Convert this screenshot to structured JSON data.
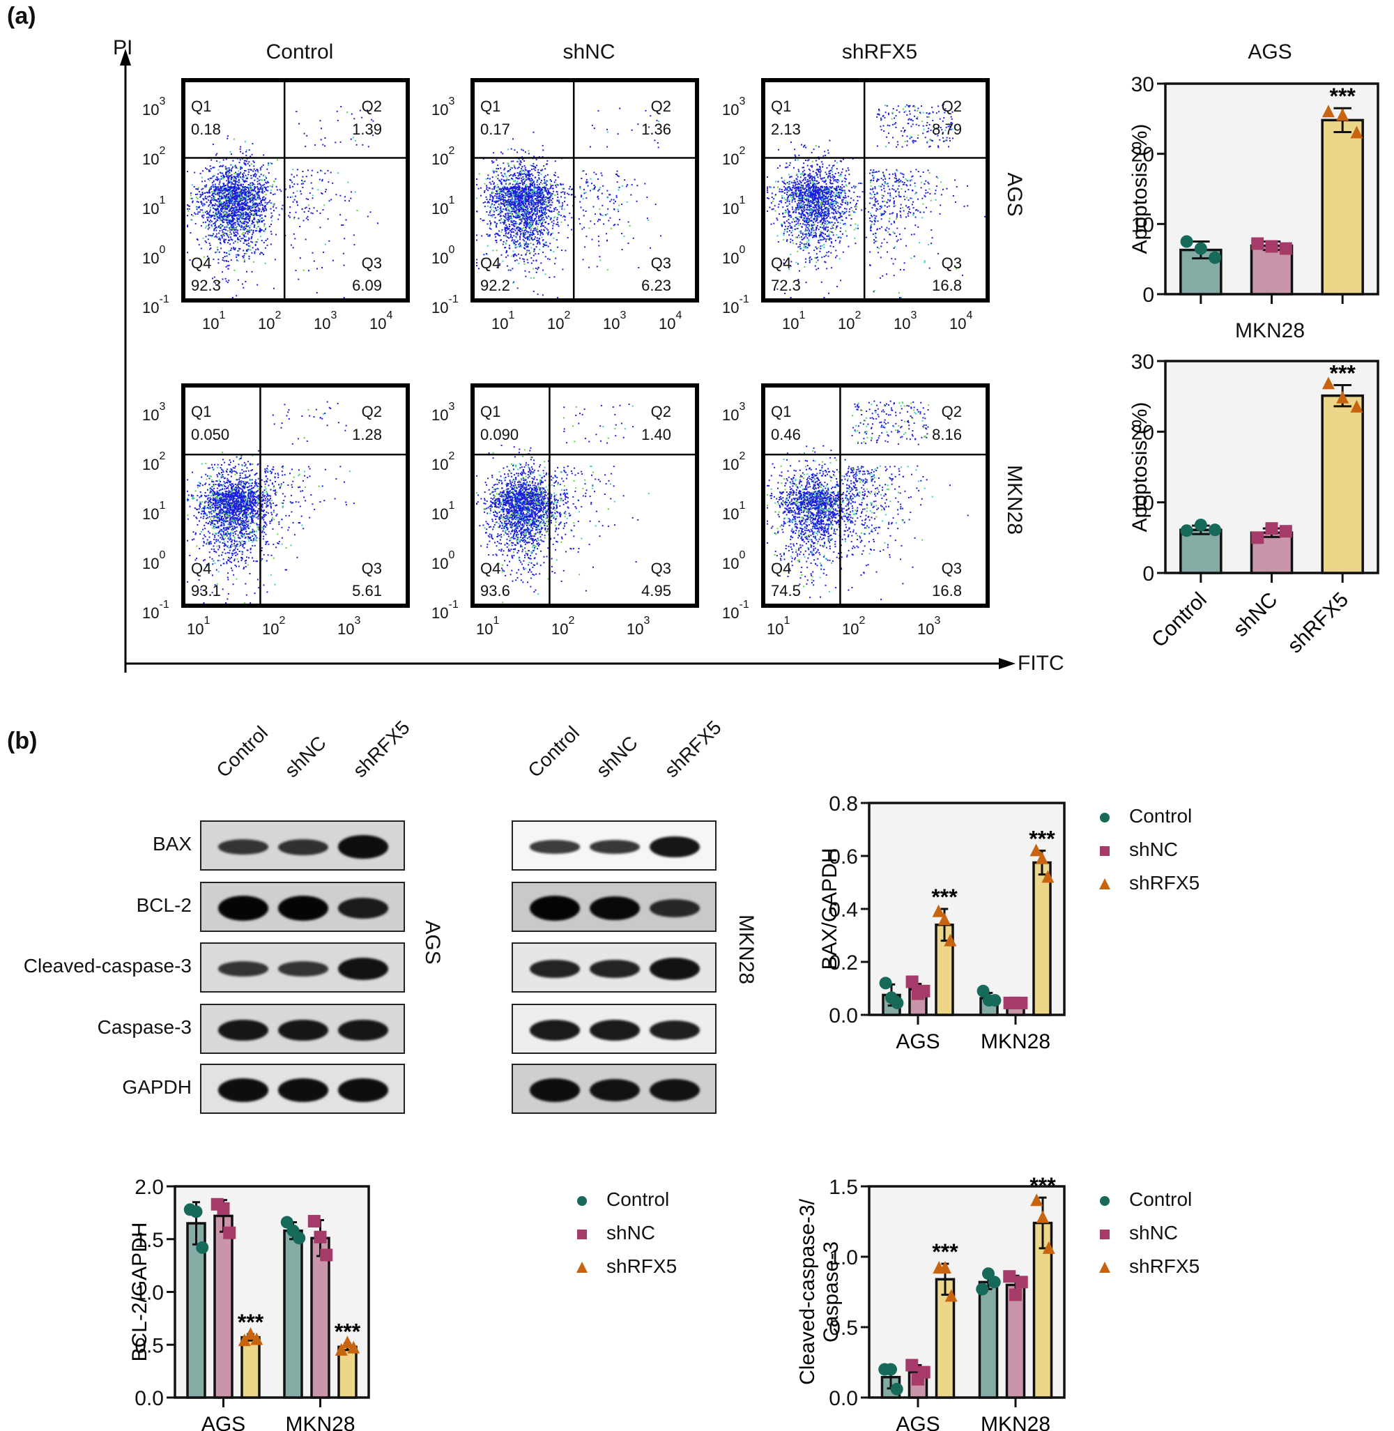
{
  "panel_labels": {
    "a": "(a)",
    "b": "(b)"
  },
  "flow": {
    "y_axis_label": "PI",
    "x_axis_label": "FITC",
    "column_titles": [
      "Control",
      "shNC",
      "shRFX5"
    ],
    "row_labels": [
      "AGS",
      "MKN28"
    ],
    "y_ticks": [
      {
        "base": "10",
        "exp": "3"
      },
      {
        "base": "10",
        "exp": "2"
      },
      {
        "base": "10",
        "exp": "1"
      },
      {
        "base": "10",
        "exp": "0"
      },
      {
        "base": "10",
        "exp": "-1"
      }
    ],
    "x_ticks_row1": [
      {
        "base": "10",
        "exp": "1"
      },
      {
        "base": "10",
        "exp": "2"
      },
      {
        "base": "10",
        "exp": "3"
      },
      {
        "base": "10",
        "exp": "4"
      }
    ],
    "x_ticks_row2": [
      {
        "base": "10",
        "exp": "1"
      },
      {
        "base": "10",
        "exp": "2"
      },
      {
        "base": "10",
        "exp": "3"
      }
    ],
    "quadrant_names": [
      "Q1",
      "Q2",
      "Q3",
      "Q4"
    ],
    "panels": [
      {
        "row": "AGS",
        "group": "Control",
        "Q1": "0.18",
        "Q2": "1.39",
        "Q3": "6.09",
        "Q4": "92.3"
      },
      {
        "row": "AGS",
        "group": "shNC",
        "Q1": "0.17",
        "Q2": "1.36",
        "Q3": "6.23",
        "Q4": "92.2"
      },
      {
        "row": "AGS",
        "group": "shRFX5",
        "Q1": "2.13",
        "Q2": "8.79",
        "Q3": "16.8",
        "Q4": "72.3"
      },
      {
        "row": "MKN28",
        "group": "Control",
        "Q1": "0.050",
        "Q2": "1.28",
        "Q3": "5.61",
        "Q4": "93.1"
      },
      {
        "row": "MKN28",
        "group": "shNC",
        "Q1": "0.090",
        "Q2": "1.40",
        "Q3": "4.95",
        "Q4": "93.6"
      },
      {
        "row": "MKN28",
        "group": "shRFX5",
        "Q1": "0.46",
        "Q2": "8.16",
        "Q3": "16.8",
        "Q4": "74.5"
      }
    ]
  },
  "western": {
    "lanes": [
      "Control",
      "shNC",
      "shRFX5"
    ],
    "proteins": [
      "BAX",
      "BCL-2",
      "Cleaved-caspase-3",
      "Caspase-3",
      "GAPDH"
    ],
    "cell_lines": [
      "AGS",
      "MKN28"
    ],
    "band_intensity": {
      "AGS": [
        [
          0.45,
          0.5,
          0.9
        ],
        [
          1.0,
          1.0,
          0.75
        ],
        [
          0.45,
          0.45,
          0.85
        ],
        [
          0.8,
          0.8,
          0.8
        ],
        [
          0.9,
          0.9,
          0.9
        ]
      ],
      "MKN28": [
        [
          0.35,
          0.4,
          0.8
        ],
        [
          1.0,
          0.95,
          0.6
        ],
        [
          0.65,
          0.65,
          0.85
        ],
        [
          0.75,
          0.75,
          0.7
        ],
        [
          0.9,
          0.85,
          0.85
        ]
      ]
    }
  },
  "colors": {
    "Control": {
      "bar": "#84aca5",
      "marker": "#17695a"
    },
    "shNC": {
      "bar": "#c995aa",
      "marker": "#a63a68"
    },
    "shRFX5": {
      "bar": "#ecd68a",
      "marker": "#c8640f"
    },
    "plot_bg": "#f3f3f3"
  },
  "legend": [
    "Control",
    "shNC",
    "shRFX5"
  ],
  "significance": "***",
  "chart_data": [
    {
      "id": "apoptosis-ags",
      "type": "bar",
      "title": "AGS",
      "ylabel": "Apoptosis (%)",
      "xlabel": "",
      "ylim": [
        0,
        30
      ],
      "yticks": [
        0,
        10,
        20,
        30
      ],
      "categories": [
        "Control",
        "shNC",
        "shRFX5"
      ],
      "values": [
        6.3,
        6.9,
        24.8
      ],
      "errors": [
        1.2,
        0.6,
        1.7
      ],
      "points": [
        [
          7.5,
          6.5,
          5.2
        ],
        [
          7.2,
          6.8,
          6.5
        ],
        [
          26.0,
          25.5,
          23.0
        ]
      ],
      "significance": [
        "",
        "",
        "***"
      ]
    },
    {
      "id": "apoptosis-mkn28",
      "type": "bar",
      "title": "MKN28",
      "ylabel": "Apoptosis (%)",
      "xlabel": "",
      "ylim": [
        0,
        30
      ],
      "yticks": [
        0,
        10,
        20,
        30
      ],
      "categories": [
        "Control",
        "shNC",
        "shRFX5"
      ],
      "values": [
        6.1,
        5.7,
        25.1
      ],
      "errors": [
        0.6,
        0.6,
        1.5
      ],
      "points": [
        [
          6.0,
          6.8,
          6.1
        ],
        [
          5.0,
          6.3,
          5.9
        ],
        [
          26.8,
          24.8,
          23.5
        ]
      ],
      "significance": [
        "",
        "",
        "***"
      ]
    },
    {
      "id": "bax-gapdh",
      "type": "bar",
      "title": "",
      "ylabel": "BAX/GAPDH",
      "xlabel": "",
      "ylim": [
        0,
        0.8
      ],
      "yticks": [
        0.0,
        0.2,
        0.4,
        0.6,
        0.8
      ],
      "ytick_labels": [
        "0.0",
        "0.2",
        "0.4",
        "0.6",
        "0.8"
      ],
      "categories": [
        "AGS",
        "MKN28"
      ],
      "series": [
        {
          "name": "Control",
          "values": [
            0.075,
            0.063
          ],
          "errors": [
            0.04,
            0.02
          ],
          "points": [
            [
              0.12,
              0.065,
              0.045
            ],
            [
              0.09,
              0.055,
              0.055
            ]
          ]
        },
        {
          "name": "shNC",
          "values": [
            0.097,
            0.045
          ],
          "errors": [
            0.02,
            0.005
          ],
          "points": [
            [
              0.125,
              0.08,
              0.09
            ],
            [
              0.045,
              0.045,
              0.045
            ]
          ]
        },
        {
          "name": "shRFX5",
          "values": [
            0.34,
            0.575
          ],
          "errors": [
            0.06,
            0.045
          ],
          "points": [
            [
              0.39,
              0.36,
              0.28
            ],
            [
              0.62,
              0.59,
              0.52
            ]
          ]
        }
      ],
      "significance": [
        [
          "",
          "",
          "***"
        ],
        [
          "",
          "",
          "***"
        ]
      ],
      "legend_position": "right"
    },
    {
      "id": "bcl2-gapdh",
      "type": "bar",
      "title": "",
      "ylabel": "BCL-2/GAPDH",
      "xlabel": "",
      "ylim": [
        0,
        2.0
      ],
      "yticks": [
        0.0,
        0.5,
        1.0,
        1.5,
        2.0
      ],
      "ytick_labels": [
        "0.0",
        "0.5",
        "1.0",
        "1.5",
        "2.0"
      ],
      "categories": [
        "AGS",
        "MKN28"
      ],
      "series": [
        {
          "name": "Control",
          "values": [
            1.65,
            1.58
          ],
          "errors": [
            0.2,
            0.08
          ],
          "points": [
            [
              1.78,
              1.76,
              1.42
            ],
            [
              1.66,
              1.58,
              1.51
            ]
          ]
        },
        {
          "name": "shNC",
          "values": [
            1.72,
            1.51
          ],
          "errors": [
            0.15,
            0.17
          ],
          "points": [
            [
              1.83,
              1.79,
              1.56
            ],
            [
              1.67,
              1.52,
              1.35
            ]
          ]
        },
        {
          "name": "shRFX5",
          "values": [
            0.57,
            0.48
          ],
          "errors": [
            0.03,
            0.03
          ],
          "points": [
            [
              0.54,
              0.6,
              0.55
            ],
            [
              0.45,
              0.52,
              0.47
            ]
          ]
        }
      ],
      "significance": [
        [
          "",
          "",
          "***"
        ],
        [
          "",
          "",
          "***"
        ]
      ],
      "legend_position": "right"
    },
    {
      "id": "cleaved-caspase3",
      "type": "bar",
      "title": "",
      "ylabel": "Cleaved-caspase-3/ Caspase-3",
      "ylabel_lines": [
        "Cleaved-caspase-3/",
        "Caspase-3"
      ],
      "xlabel": "",
      "ylim": [
        0,
        1.5
      ],
      "yticks": [
        0.0,
        0.5,
        1.0,
        1.5
      ],
      "ytick_labels": [
        "0.0",
        "0.5",
        "1.0",
        "1.5"
      ],
      "categories": [
        "AGS",
        "MKN28"
      ],
      "series": [
        {
          "name": "Control",
          "values": [
            0.145,
            0.82
          ],
          "errors": [
            0.08,
            0.05
          ],
          "points": [
            [
              0.2,
              0.2,
              0.06
            ],
            [
              0.77,
              0.88,
              0.82
            ]
          ]
        },
        {
          "name": "shNC",
          "values": [
            0.18,
            0.8
          ],
          "errors": [
            0.05,
            0.065
          ],
          "points": [
            [
              0.23,
              0.13,
              0.18
            ],
            [
              0.86,
              0.73,
              0.82
            ]
          ]
        },
        {
          "name": "shRFX5",
          "values": [
            0.84,
            1.24
          ],
          "errors": [
            0.11,
            0.18
          ],
          "points": [
            [
              0.92,
              0.92,
              0.72
            ],
            [
              1.4,
              1.28,
              1.06
            ]
          ]
        }
      ],
      "significance": [
        [
          "",
          "",
          "***"
        ],
        [
          "",
          "",
          "***"
        ]
      ],
      "legend_position": "right"
    }
  ]
}
